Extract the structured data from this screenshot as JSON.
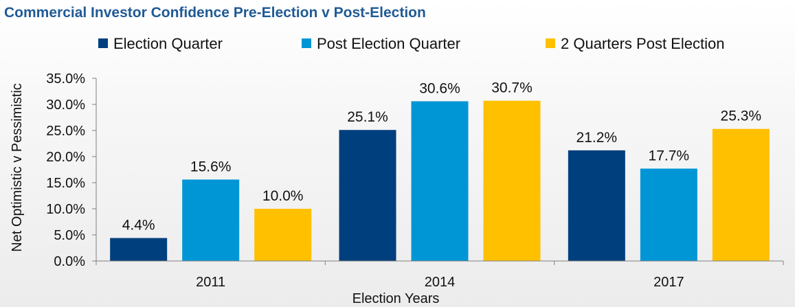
{
  "chart_data": {
    "type": "bar",
    "title": "Commercial Investor Confidence Pre-Election v Post-Election",
    "xlabel": "Election Years",
    "ylabel": "Net Optimistic v Pessimistic",
    "categories": [
      "2011",
      "2014",
      "2017"
    ],
    "series": [
      {
        "name": "Election Quarter",
        "color": "#003f7d",
        "values": [
          4.4,
          25.1,
          21.2
        ],
        "labels": [
          "4.4%",
          "25.1%",
          "21.2%"
        ]
      },
      {
        "name": "Post Election Quarter",
        "color": "#0096d6",
        "values": [
          15.6,
          30.6,
          17.7
        ],
        "labels": [
          "15.6%",
          "30.6%",
          "17.7%"
        ]
      },
      {
        "name": "2 Quarters Post Election",
        "color": "#ffc000",
        "values": [
          10.0,
          30.7,
          25.3
        ],
        "labels": [
          "10.0%",
          "30.7%",
          "25.3%"
        ]
      }
    ],
    "ylim": [
      0,
      35
    ],
    "yticks": [
      "0.0%",
      "5.0%",
      "10.0%",
      "15.0%",
      "20.0%",
      "25.0%",
      "30.0%",
      "35.0%"
    ],
    "legend_position": "top",
    "grid": false
  }
}
